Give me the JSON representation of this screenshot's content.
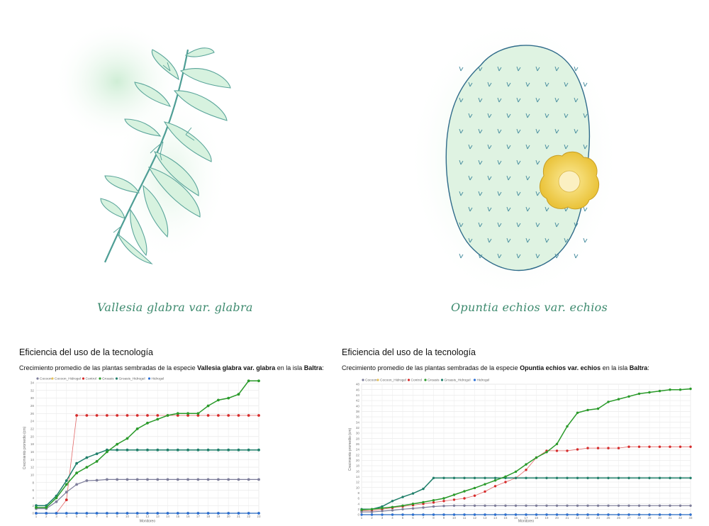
{
  "captions": {
    "left": "Vallesia glabra var. glabra",
    "right": "Opuntia echios var. echios"
  },
  "panels": [
    {
      "title": "Eficiencia del uso de la tecnología",
      "subtitle_pre": "Crecimiento promedio de las plantas sembradas de la especie ",
      "species": "Vallesia glabra var. glabra",
      "subtitle_mid": " en la isla ",
      "island": "Baltra",
      "subtitle_post": ":"
    },
    {
      "title": "Eficiencia del uso de la tecnología",
      "subtitle_pre": "Crecimiento promedio de las plantas sembradas de la especie ",
      "species": "Opuntia echios var. echios",
      "subtitle_mid": " en la isla ",
      "island": "Baltra",
      "subtitle_post": ":"
    }
  ],
  "colors": {
    "Cocoon": "#7d7d9a",
    "Cocoon_Hidrogel": "#e6c25a",
    "Control": "#d62a2a",
    "Groasis": "#2a9a2a",
    "Groasis_Hidrogel": "#1f7f6a",
    "Hidrogel": "#2a6fd6"
  },
  "chart_data": [
    {
      "type": "line",
      "xlabel": "Monitoreo",
      "ylabel": "Crecimiento promedio (cm)",
      "ylim": [
        0,
        34
      ],
      "yticks": [
        0,
        2,
        4,
        6,
        8,
        10,
        12,
        14,
        16,
        18,
        20,
        22,
        24,
        26,
        28,
        30,
        32,
        34
      ],
      "x": [
        1,
        2,
        3,
        4,
        5,
        6,
        7,
        8,
        9,
        10,
        11,
        12,
        13,
        14,
        15,
        16,
        17,
        18,
        19,
        20,
        21,
        22,
        23
      ],
      "grid": true,
      "legend": "top-left",
      "series": [
        {
          "name": "Cocoon",
          "values": [
            1.2,
            1.2,
            3.0,
            5.5,
            7.5,
            8.5,
            8.6,
            8.8,
            8.8,
            8.8,
            8.8,
            8.8,
            8.8,
            8.8,
            8.8,
            8.8,
            8.8,
            8.8,
            8.8,
            8.8,
            8.8,
            8.8,
            8.8
          ]
        },
        {
          "name": "Cocoon_Hidrogel",
          "values": [
            0,
            0,
            0,
            0,
            0,
            0,
            0,
            0,
            0,
            0,
            0,
            0,
            0,
            0,
            0,
            0,
            0,
            0,
            0,
            0,
            0,
            0,
            0
          ]
        },
        {
          "name": "Control",
          "values": [
            0,
            0,
            0,
            3.5,
            25.5,
            25.5,
            25.5,
            25.5,
            25.5,
            25.5,
            25.5,
            25.5,
            25.5,
            25.5,
            25.5,
            25.5,
            25.5,
            25.5,
            25.5,
            25.5,
            25.5,
            25.5,
            25.5
          ]
        },
        {
          "name": "Groasis",
          "values": [
            1.5,
            1.5,
            4.0,
            7.5,
            10.5,
            12.0,
            13.5,
            16.0,
            18.0,
            19.5,
            22.0,
            23.5,
            24.5,
            25.5,
            26.0,
            26.0,
            26.0,
            28.0,
            29.5,
            30.0,
            31.0,
            34.5,
            34.5
          ]
        },
        {
          "name": "Groasis_Hidrogel",
          "values": [
            2.0,
            2.0,
            4.5,
            8.5,
            13.0,
            14.5,
            15.5,
            16.5,
            16.5,
            16.5,
            16.5,
            16.5,
            16.5,
            16.5,
            16.5,
            16.5,
            16.5,
            16.5,
            16.5,
            16.5,
            16.5,
            16.5,
            16.5
          ]
        },
        {
          "name": "Hidrogel",
          "values": [
            0,
            0,
            0,
            0,
            0,
            0,
            0,
            0,
            0,
            0,
            0,
            0,
            0,
            0,
            0,
            0,
            0,
            0,
            0,
            0,
            0,
            0,
            0
          ]
        }
      ]
    },
    {
      "type": "line",
      "xlabel": "Monitoreo",
      "ylabel": "Crecimiento promedio (cm)",
      "ylim": [
        0,
        48
      ],
      "yticks": [
        0,
        2,
        4,
        6,
        8,
        10,
        12,
        14,
        16,
        18,
        20,
        22,
        24,
        26,
        28,
        30,
        32,
        34,
        36,
        38,
        40,
        42,
        44,
        46,
        48
      ],
      "x": [
        1,
        2,
        3,
        4,
        5,
        6,
        7,
        8,
        9,
        10,
        11,
        12,
        13,
        14,
        15,
        16,
        17,
        18,
        19,
        20,
        21,
        22,
        23,
        24,
        25,
        26,
        27,
        28,
        29,
        30,
        31,
        32,
        33
      ],
      "grid": true,
      "legend": "top-left",
      "series": [
        {
          "name": "Cocoon",
          "values": [
            1.0,
            1.0,
            1.3,
            1.6,
            2.0,
            2.3,
            2.6,
            3.0,
            3.2,
            3.3,
            3.3,
            3.3,
            3.3,
            3.3,
            3.3,
            3.3,
            3.3,
            3.3,
            3.3,
            3.3,
            3.3,
            3.3,
            3.3,
            3.3,
            3.3,
            3.3,
            3.3,
            3.3,
            3.3,
            3.3,
            3.3,
            3.3,
            3.3
          ]
        },
        {
          "name": "Cocoon_Hidrogel",
          "values": [
            0,
            0,
            0,
            0,
            0,
            0,
            0,
            0,
            0,
            0,
            0,
            0,
            0,
            0,
            0,
            0,
            0,
            0,
            0,
            0,
            0,
            0,
            0,
            0,
            0,
            0,
            0,
            0,
            0,
            0,
            0,
            0,
            0
          ]
        },
        {
          "name": "Control",
          "values": [
            1.5,
            1.5,
            2.0,
            2.5,
            3.0,
            3.5,
            4.0,
            4.5,
            5.0,
            5.5,
            6.0,
            7.0,
            8.5,
            10.5,
            12.0,
            13.5,
            16.5,
            21.0,
            23.5,
            23.5,
            23.5,
            24.0,
            24.5,
            24.5,
            24.5,
            24.5,
            25.0,
            25.0,
            25.0,
            25.0,
            25.0,
            25.0,
            25.0
          ]
        },
        {
          "name": "Groasis",
          "values": [
            1.8,
            2.0,
            2.4,
            2.8,
            3.3,
            4.0,
            4.6,
            5.3,
            6.0,
            7.3,
            8.6,
            9.8,
            11.2,
            12.6,
            14.0,
            15.8,
            18.5,
            21.0,
            23.0,
            26.0,
            32.5,
            37.5,
            38.5,
            39.0,
            41.5,
            42.5,
            43.5,
            44.5,
            45.0,
            45.5,
            46.0,
            46.0,
            46.3
          ]
        },
        {
          "name": "Groasis_Hidrogel",
          "values": [
            2.0,
            2.0,
            3.0,
            5.0,
            6.5,
            7.8,
            9.5,
            13.5,
            13.5,
            13.5,
            13.5,
            13.5,
            13.5,
            13.5,
            13.5,
            13.5,
            13.5,
            13.5,
            13.5,
            13.5,
            13.5,
            13.5,
            13.5,
            13.5,
            13.5,
            13.5,
            13.5,
            13.5,
            13.5,
            13.5,
            13.5,
            13.5,
            13.5
          ]
        },
        {
          "name": "Hidrogel",
          "values": [
            0,
            0,
            0,
            0,
            0,
            0,
            0,
            0,
            0,
            0,
            0,
            0,
            0,
            0,
            0,
            0,
            0,
            0,
            0,
            0,
            0,
            0,
            0,
            0,
            0,
            0,
            0,
            0,
            0,
            0,
            0,
            0,
            0
          ]
        }
      ]
    }
  ]
}
